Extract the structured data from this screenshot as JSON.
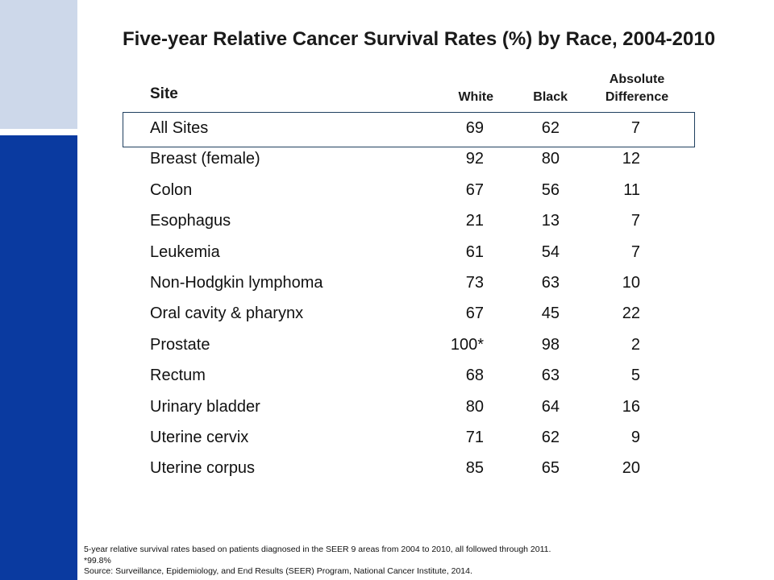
{
  "title": "Five-year Relative Cancer Survival Rates (%) by Race, 2004-2010",
  "columns": {
    "site": "Site",
    "white": "White",
    "black": "Black",
    "difference_line1": "Absolute",
    "difference_line2": "Difference"
  },
  "rows": [
    {
      "site": "All Sites",
      "white": "69",
      "black": "62",
      "diff": "7"
    },
    {
      "site": "Breast (female)",
      "white": "92",
      "black": "80",
      "diff": "12"
    },
    {
      "site": "Colon",
      "white": "67",
      "black": "56",
      "diff": "11"
    },
    {
      "site": "Esophagus",
      "white": "21",
      "black": "13",
      "diff": "7"
    },
    {
      "site": "Leukemia",
      "white": "61",
      "black": "54",
      "diff": "7"
    },
    {
      "site": "Non-Hodgkin lymphoma",
      "white": "73",
      "black": "63",
      "diff": "10"
    },
    {
      "site": "Oral cavity & pharynx",
      "white": "67",
      "black": "45",
      "diff": "22"
    },
    {
      "site": "Prostate",
      "white": "100*",
      "black": "98",
      "diff": "2"
    },
    {
      "site": "Rectum",
      "white": "68",
      "black": "63",
      "diff": "5"
    },
    {
      "site": "Urinary bladder",
      "white": "80",
      "black": "64",
      "diff": "16"
    },
    {
      "site": "Uterine cervix",
      "white": "71",
      "black": "62",
      "diff": "9"
    },
    {
      "site": "Uterine corpus",
      "white": "85",
      "black": "65",
      "diff": "20"
    }
  ],
  "footnotes": [
    "5-year relative survival rates based on patients diagnosed in the SEER 9 areas from 2004 to 2010, all followed through 2011.",
    "*99.8%",
    "Source: Surveillance, Epidemiology, and End Results (SEER) Program, National Cancer Institute, 2014."
  ],
  "colors": {
    "sidebar_dark": "#0a3aa0",
    "sidebar_light": "#cdd8ea",
    "highlight_border": "#1f3f5f"
  }
}
